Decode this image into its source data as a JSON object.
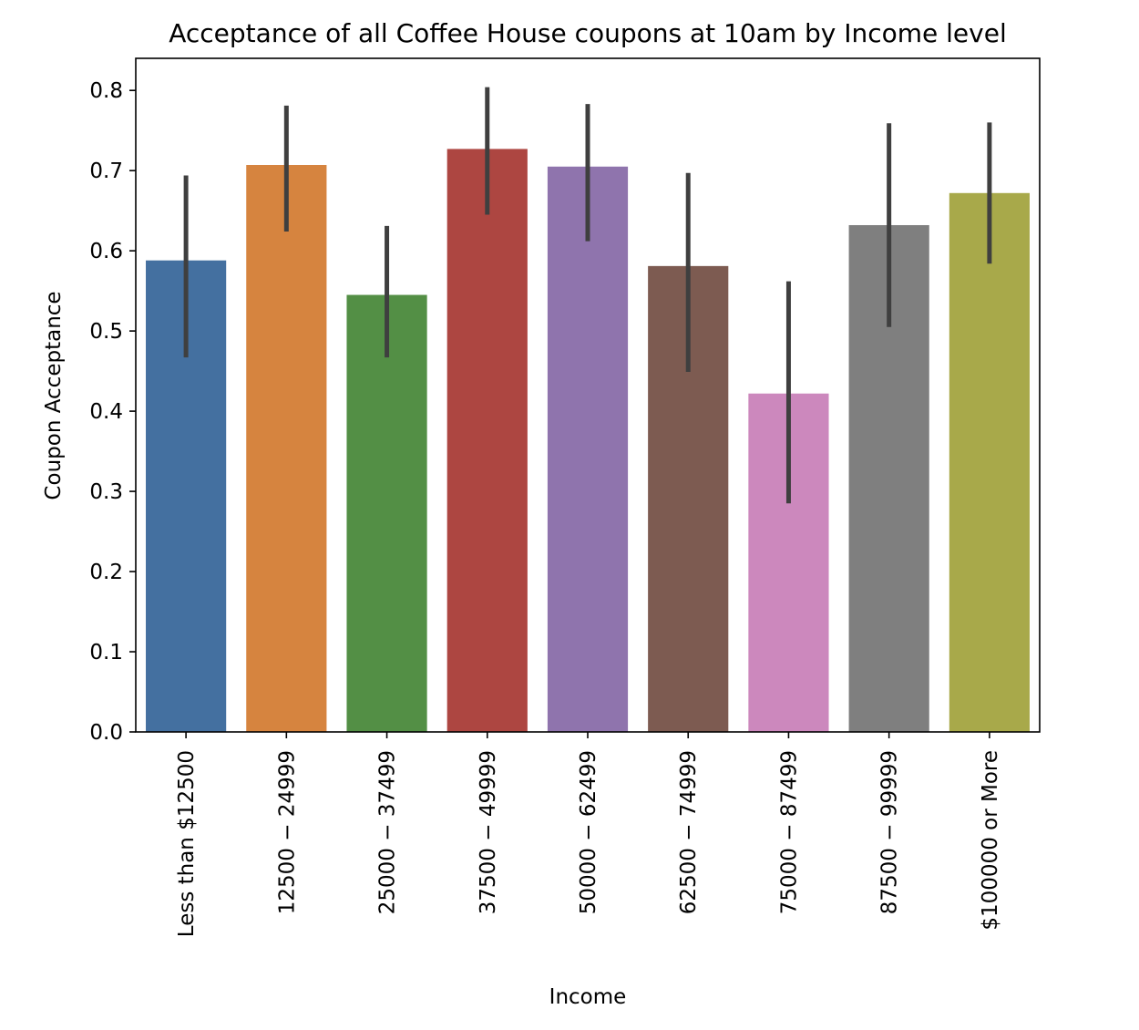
{
  "chart_data": {
    "type": "bar",
    "title": "Acceptance of all Coffee House coupons at 10am by Income level",
    "xlabel": "Income",
    "ylabel": "Coupon Acceptance",
    "ylim": [
      0,
      0.84
    ],
    "yticks": [
      "0.0",
      "0.1",
      "0.2",
      "0.3",
      "0.4",
      "0.5",
      "0.6",
      "0.7",
      "0.8"
    ],
    "grid": false,
    "categories": [
      "Less than $12500",
      "12500 − 24999",
      "25000 − 37499",
      "37500 − 49999",
      "50000 − 62499",
      "62500 − 74999",
      "75000 − 87499",
      "87500 − 99999",
      "$100000 or More"
    ],
    "values": [
      0.588,
      0.707,
      0.545,
      0.727,
      0.705,
      0.581,
      0.422,
      0.632,
      0.672
    ],
    "error_low": [
      0.467,
      0.624,
      0.467,
      0.645,
      0.612,
      0.449,
      0.285,
      0.505,
      0.584
    ],
    "error_high": [
      0.694,
      0.781,
      0.631,
      0.804,
      0.783,
      0.697,
      0.562,
      0.759,
      0.76
    ],
    "colors": [
      "#4470a0",
      "#d6843f",
      "#538f45",
      "#ad4641",
      "#8f74ad",
      "#7d5b51",
      "#cc88bd",
      "#7f7f7f",
      "#a8a94a"
    ],
    "error_color": "#3f3f3f"
  }
}
